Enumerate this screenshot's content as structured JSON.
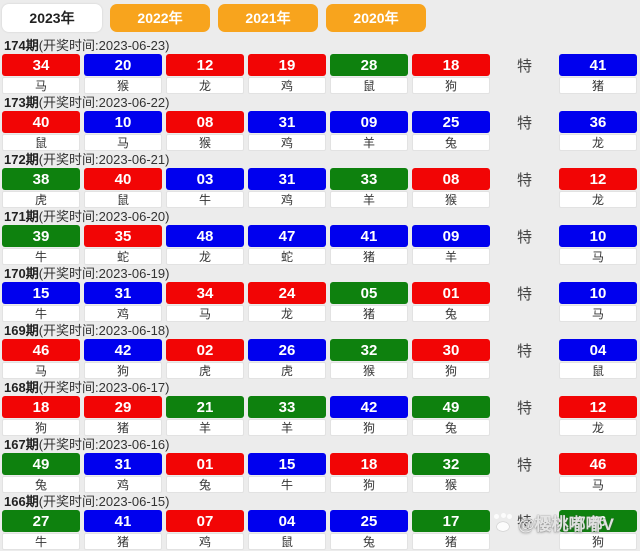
{
  "tabs": [
    {
      "label": "2023年",
      "active": true
    },
    {
      "label": "2022年",
      "active": false
    },
    {
      "label": "2021年",
      "active": false
    },
    {
      "label": "2020年",
      "active": false
    }
  ],
  "special_label": "特",
  "colors": {
    "red": "#f20505",
    "blue": "#0000ee",
    "green": "#0e810e",
    "tab_orange": "#f8a41d",
    "tab_active_bg": "#ffffff",
    "page_bg": "#ececec"
  },
  "watermark": {
    "text": "@樱桃嘟嘟V"
  },
  "rows": [
    {
      "period": "174期",
      "time": "(开奖时间:2023-06-23)",
      "numbers": [
        {
          "n": "34",
          "color": "red",
          "zodiac": "马"
        },
        {
          "n": "20",
          "color": "blue",
          "zodiac": "猴"
        },
        {
          "n": "12",
          "color": "red",
          "zodiac": "龙"
        },
        {
          "n": "19",
          "color": "red",
          "zodiac": "鸡"
        },
        {
          "n": "28",
          "color": "green",
          "zodiac": "鼠"
        },
        {
          "n": "18",
          "color": "red",
          "zodiac": "狗"
        }
      ],
      "special": {
        "n": "41",
        "color": "blue",
        "zodiac": "猪"
      }
    },
    {
      "period": "173期",
      "time": "(开奖时间:2023-06-22)",
      "numbers": [
        {
          "n": "40",
          "color": "red",
          "zodiac": "鼠"
        },
        {
          "n": "10",
          "color": "blue",
          "zodiac": "马"
        },
        {
          "n": "08",
          "color": "red",
          "zodiac": "猴"
        },
        {
          "n": "31",
          "color": "blue",
          "zodiac": "鸡"
        },
        {
          "n": "09",
          "color": "blue",
          "zodiac": "羊"
        },
        {
          "n": "25",
          "color": "blue",
          "zodiac": "兔"
        }
      ],
      "special": {
        "n": "36",
        "color": "blue",
        "zodiac": "龙"
      }
    },
    {
      "period": "172期",
      "time": "(开奖时间:2023-06-21)",
      "numbers": [
        {
          "n": "38",
          "color": "green",
          "zodiac": "虎"
        },
        {
          "n": "40",
          "color": "red",
          "zodiac": "鼠"
        },
        {
          "n": "03",
          "color": "blue",
          "zodiac": "牛"
        },
        {
          "n": "31",
          "color": "blue",
          "zodiac": "鸡"
        },
        {
          "n": "33",
          "color": "green",
          "zodiac": "羊"
        },
        {
          "n": "08",
          "color": "red",
          "zodiac": "猴"
        }
      ],
      "special": {
        "n": "12",
        "color": "red",
        "zodiac": "龙"
      }
    },
    {
      "period": "171期",
      "time": "(开奖时间:2023-06-20)",
      "numbers": [
        {
          "n": "39",
          "color": "green",
          "zodiac": "牛"
        },
        {
          "n": "35",
          "color": "red",
          "zodiac": "蛇"
        },
        {
          "n": "48",
          "color": "blue",
          "zodiac": "龙"
        },
        {
          "n": "47",
          "color": "blue",
          "zodiac": "蛇"
        },
        {
          "n": "41",
          "color": "blue",
          "zodiac": "猪"
        },
        {
          "n": "09",
          "color": "blue",
          "zodiac": "羊"
        }
      ],
      "special": {
        "n": "10",
        "color": "blue",
        "zodiac": "马"
      }
    },
    {
      "period": "170期",
      "time": "(开奖时间:2023-06-19)",
      "numbers": [
        {
          "n": "15",
          "color": "blue",
          "zodiac": "牛"
        },
        {
          "n": "31",
          "color": "blue",
          "zodiac": "鸡"
        },
        {
          "n": "34",
          "color": "red",
          "zodiac": "马"
        },
        {
          "n": "24",
          "color": "red",
          "zodiac": "龙"
        },
        {
          "n": "05",
          "color": "green",
          "zodiac": "猪"
        },
        {
          "n": "01",
          "color": "red",
          "zodiac": "兔"
        }
      ],
      "special": {
        "n": "10",
        "color": "blue",
        "zodiac": "马"
      }
    },
    {
      "period": "169期",
      "time": "(开奖时间:2023-06-18)",
      "numbers": [
        {
          "n": "46",
          "color": "red",
          "zodiac": "马"
        },
        {
          "n": "42",
          "color": "blue",
          "zodiac": "狗"
        },
        {
          "n": "02",
          "color": "red",
          "zodiac": "虎"
        },
        {
          "n": "26",
          "color": "blue",
          "zodiac": "虎"
        },
        {
          "n": "32",
          "color": "green",
          "zodiac": "猴"
        },
        {
          "n": "30",
          "color": "red",
          "zodiac": "狗"
        }
      ],
      "special": {
        "n": "04",
        "color": "blue",
        "zodiac": "鼠"
      }
    },
    {
      "period": "168期",
      "time": "(开奖时间:2023-06-17)",
      "numbers": [
        {
          "n": "18",
          "color": "red",
          "zodiac": "狗"
        },
        {
          "n": "29",
          "color": "red",
          "zodiac": "猪"
        },
        {
          "n": "21",
          "color": "green",
          "zodiac": "羊"
        },
        {
          "n": "33",
          "color": "green",
          "zodiac": "羊"
        },
        {
          "n": "42",
          "color": "blue",
          "zodiac": "狗"
        },
        {
          "n": "49",
          "color": "green",
          "zodiac": "兔"
        }
      ],
      "special": {
        "n": "12",
        "color": "red",
        "zodiac": "龙"
      }
    },
    {
      "period": "167期",
      "time": "(开奖时间:2023-06-16)",
      "numbers": [
        {
          "n": "49",
          "color": "green",
          "zodiac": "兔"
        },
        {
          "n": "31",
          "color": "blue",
          "zodiac": "鸡"
        },
        {
          "n": "01",
          "color": "red",
          "zodiac": "兔"
        },
        {
          "n": "15",
          "color": "blue",
          "zodiac": "牛"
        },
        {
          "n": "18",
          "color": "red",
          "zodiac": "狗"
        },
        {
          "n": "32",
          "color": "green",
          "zodiac": "猴"
        }
      ],
      "special": {
        "n": "46",
        "color": "red",
        "zodiac": "马"
      }
    },
    {
      "period": "166期",
      "time": "(开奖时间:2023-06-15)",
      "numbers": [
        {
          "n": "27",
          "color": "green",
          "zodiac": "牛"
        },
        {
          "n": "41",
          "color": "blue",
          "zodiac": "猪"
        },
        {
          "n": "07",
          "color": "red",
          "zodiac": "鸡"
        },
        {
          "n": "04",
          "color": "blue",
          "zodiac": "鼠"
        },
        {
          "n": "25",
          "color": "blue",
          "zodiac": "兔"
        },
        {
          "n": "17",
          "color": "green",
          "zodiac": "猪"
        }
      ],
      "special": {
        "n": "06",
        "color": "green",
        "zodiac": "狗"
      }
    }
  ]
}
